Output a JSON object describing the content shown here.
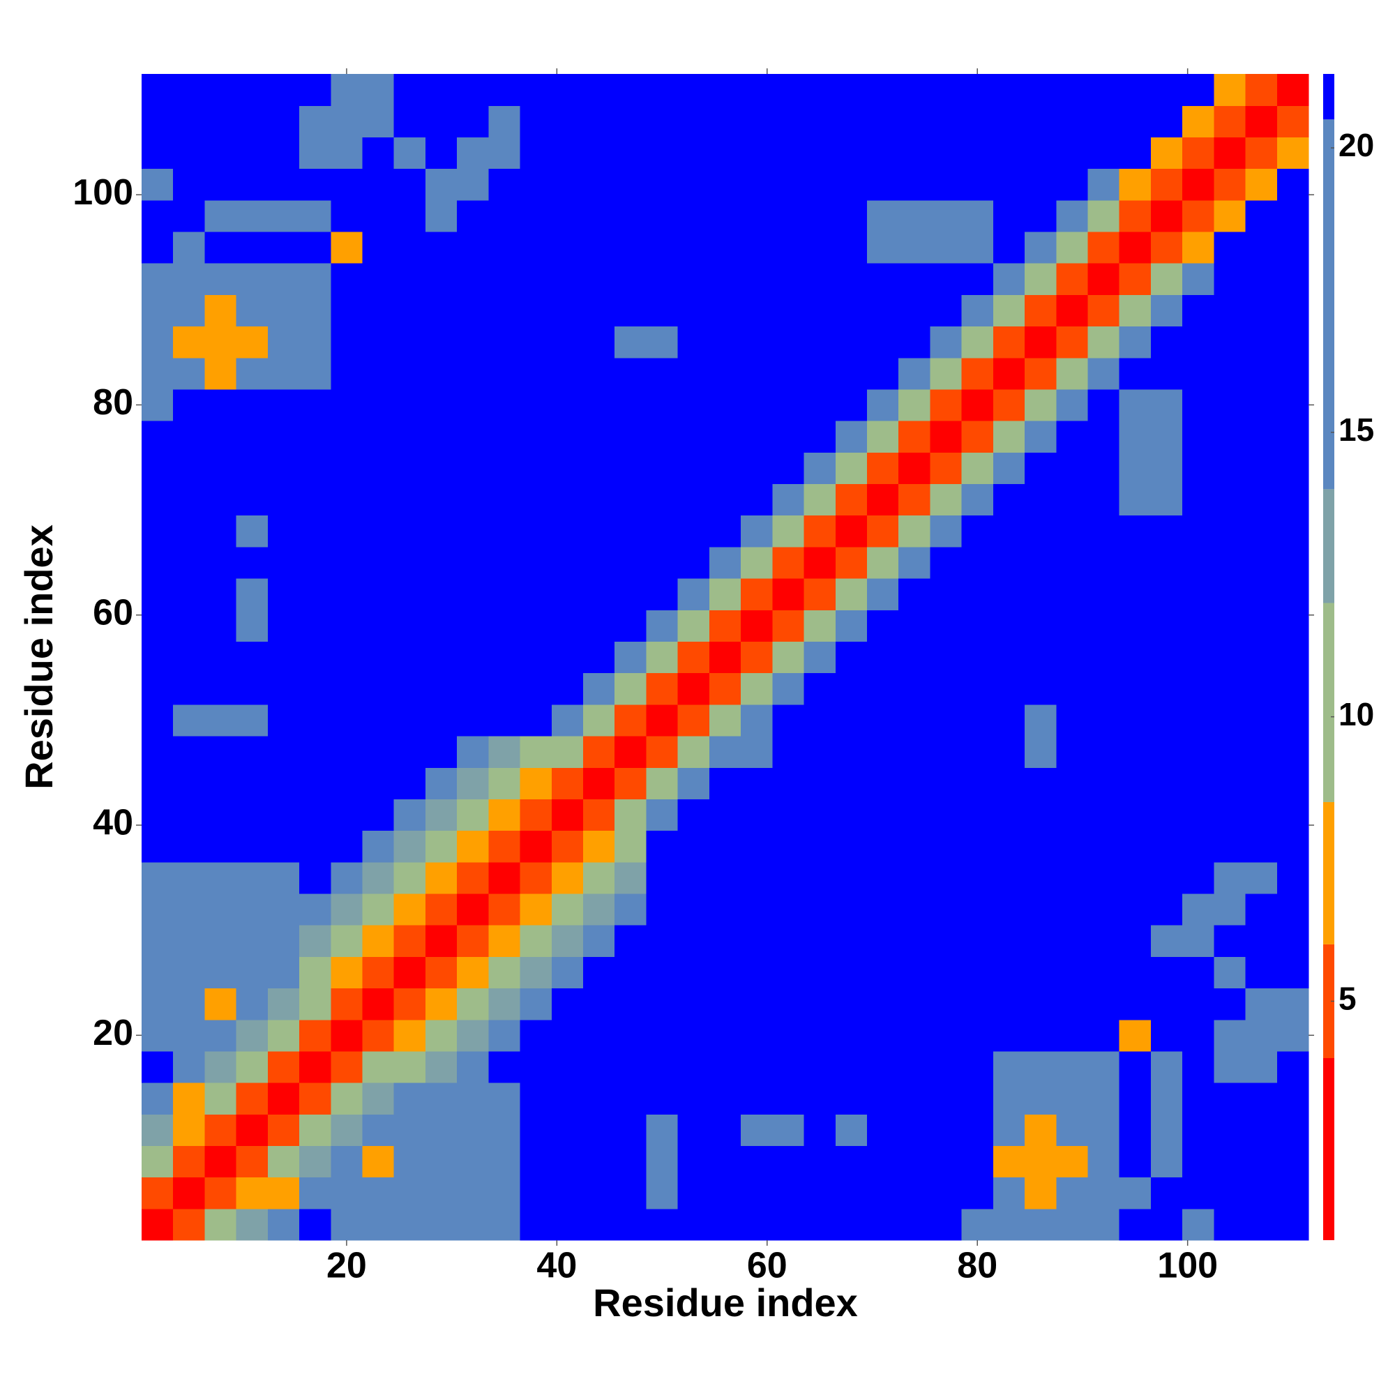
{
  "chart_data": {
    "type": "heatmap",
    "xlabel": "Residue index",
    "ylabel": "Residue index",
    "x": [
      2,
      5,
      8,
      11,
      14,
      17,
      20,
      23,
      26,
      29,
      32,
      35,
      38,
      41,
      44,
      47,
      50,
      53,
      56,
      59,
      62,
      65,
      68,
      71,
      74,
      77,
      80,
      83,
      86,
      89,
      92,
      95,
      98,
      101,
      104,
      107,
      110
    ],
    "y": [
      2,
      5,
      8,
      11,
      14,
      17,
      20,
      23,
      26,
      29,
      32,
      35,
      38,
      41,
      44,
      47,
      50,
      53,
      56,
      59,
      62,
      65,
      68,
      71,
      74,
      77,
      80,
      83,
      86,
      89,
      92,
      95,
      98,
      101,
      104,
      107,
      110
    ],
    "xlim": [
      0.5,
      111.5
    ],
    "ylim": [
      0.5,
      111.5
    ],
    "xticks": [
      20,
      40,
      60,
      80,
      100
    ],
    "yticks": [
      20,
      40,
      60,
      80,
      100
    ],
    "zlim": [
      0.8,
      21.3
    ],
    "zticks": [
      5,
      10,
      15,
      20
    ],
    "levels": [
      0.8,
      4,
      6,
      8.5,
      12,
      14,
      20.5,
      21.3
    ],
    "colors": [
      "#ff0000",
      "#ff4a00",
      "#ffa000",
      "#9ebc8a",
      "#7fa2a8",
      "#5b87c0",
      "#0000ff"
    ],
    "z": [
      [
        3,
        5,
        11,
        13,
        16,
        21,
        16,
        16,
        16,
        16,
        16,
        16,
        21,
        21,
        21,
        21,
        21,
        21,
        21,
        21,
        21,
        21,
        21,
        21,
        21,
        21,
        16,
        16,
        16,
        16,
        16,
        21,
        21,
        16,
        21,
        21,
        21
      ],
      [
        5,
        3,
        5,
        7,
        7,
        16,
        16,
        16,
        16,
        16,
        16,
        16,
        21,
        21,
        21,
        21,
        16,
        21,
        21,
        21,
        21,
        21,
        21,
        21,
        21,
        21,
        21,
        16,
        8,
        16,
        16,
        16,
        21,
        21,
        21,
        21,
        21
      ],
      [
        11,
        5,
        3,
        5,
        11,
        13,
        16,
        7,
        16,
        16,
        16,
        16,
        21,
        21,
        21,
        21,
        16,
        21,
        21,
        21,
        21,
        21,
        21,
        21,
        21,
        21,
        21,
        8,
        7,
        8,
        16,
        21,
        16,
        21,
        21,
        21,
        21
      ],
      [
        13,
        7,
        5,
        3,
        5,
        11,
        13,
        16,
        16,
        16,
        16,
        16,
        21,
        21,
        21,
        21,
        16,
        21,
        21,
        16,
        16,
        21,
        16,
        21,
        21,
        21,
        21,
        16,
        8,
        16,
        16,
        21,
        16,
        21,
        21,
        21,
        21
      ],
      [
        16,
        7,
        11,
        5,
        3,
        5,
        11,
        13,
        16,
        16,
        16,
        16,
        21,
        21,
        21,
        21,
        21,
        21,
        21,
        21,
        21,
        21,
        21,
        21,
        21,
        21,
        21,
        16,
        16,
        16,
        16,
        21,
        16,
        21,
        21,
        21,
        21
      ],
      [
        21,
        16,
        13,
        11,
        5,
        3,
        5,
        11,
        11,
        13,
        16,
        21,
        21,
        21,
        21,
        21,
        21,
        21,
        21,
        21,
        21,
        21,
        21,
        21,
        21,
        21,
        21,
        16,
        16,
        16,
        16,
        21,
        16,
        21,
        16,
        16,
        21
      ],
      [
        16,
        16,
        16,
        13,
        11,
        5,
        3,
        5,
        8,
        11,
        13,
        16,
        21,
        21,
        21,
        21,
        21,
        21,
        21,
        21,
        21,
        21,
        21,
        21,
        21,
        21,
        21,
        21,
        21,
        21,
        21,
        7,
        21,
        21,
        16,
        16,
        16
      ],
      [
        16,
        16,
        7,
        16,
        13,
        11,
        5,
        3,
        5,
        8,
        11,
        13,
        16,
        21,
        21,
        21,
        21,
        21,
        21,
        21,
        21,
        21,
        21,
        21,
        21,
        21,
        21,
        21,
        21,
        21,
        21,
        21,
        21,
        21,
        21,
        16,
        16
      ],
      [
        16,
        16,
        16,
        16,
        16,
        11,
        8,
        5,
        3,
        5,
        8,
        11,
        13,
        16,
        21,
        21,
        21,
        21,
        21,
        21,
        21,
        21,
        21,
        21,
        21,
        21,
        21,
        21,
        21,
        21,
        21,
        21,
        21,
        21,
        16,
        21,
        21
      ],
      [
        16,
        16,
        16,
        16,
        16,
        13,
        11,
        8,
        5,
        3,
        5,
        8,
        11,
        13,
        16,
        21,
        21,
        21,
        21,
        21,
        21,
        21,
        21,
        21,
        21,
        21,
        21,
        21,
        21,
        21,
        21,
        21,
        16,
        16,
        21,
        21,
        21
      ],
      [
        16,
        16,
        16,
        16,
        16,
        16,
        13,
        11,
        8,
        5,
        3,
        5,
        8,
        11,
        13,
        16,
        21,
        21,
        21,
        21,
        21,
        21,
        21,
        21,
        21,
        21,
        21,
        21,
        21,
        21,
        21,
        21,
        21,
        16,
        16,
        21,
        21
      ],
      [
        16,
        16,
        16,
        16,
        16,
        21,
        16,
        13,
        11,
        8,
        5,
        3,
        5,
        8,
        11,
        13,
        21,
        21,
        21,
        21,
        21,
        21,
        21,
        21,
        21,
        21,
        21,
        21,
        21,
        21,
        21,
        21,
        21,
        21,
        16,
        16,
        21
      ],
      [
        21,
        21,
        21,
        21,
        21,
        21,
        21,
        16,
        13,
        11,
        8,
        5,
        3,
        5,
        8,
        11,
        21,
        21,
        21,
        21,
        21,
        21,
        21,
        21,
        21,
        21,
        21,
        21,
        21,
        21,
        21,
        21,
        21,
        21,
        21,
        21,
        21
      ],
      [
        21,
        21,
        21,
        21,
        21,
        21,
        21,
        21,
        16,
        13,
        11,
        8,
        5,
        3,
        5,
        11,
        16,
        21,
        21,
        21,
        21,
        21,
        21,
        21,
        21,
        21,
        21,
        21,
        21,
        21,
        21,
        21,
        21,
        21,
        21,
        21,
        21
      ],
      [
        21,
        21,
        21,
        21,
        21,
        21,
        21,
        21,
        21,
        16,
        13,
        11,
        8,
        5,
        3,
        5,
        11,
        16,
        21,
        21,
        21,
        21,
        21,
        21,
        21,
        21,
        21,
        21,
        21,
        21,
        21,
        21,
        21,
        21,
        21,
        21,
        21
      ],
      [
        21,
        21,
        21,
        21,
        21,
        21,
        21,
        21,
        21,
        21,
        16,
        13,
        11,
        11,
        5,
        3,
        5,
        11,
        16,
        16,
        21,
        21,
        21,
        21,
        21,
        21,
        21,
        21,
        16,
        21,
        21,
        21,
        21,
        21,
        21,
        21,
        21
      ],
      [
        21,
        16,
        16,
        16,
        21,
        21,
        21,
        21,
        21,
        21,
        21,
        21,
        21,
        16,
        11,
        5,
        3,
        5,
        11,
        16,
        21,
        21,
        21,
        21,
        21,
        21,
        21,
        21,
        16,
        21,
        21,
        21,
        21,
        21,
        21,
        21,
        21
      ],
      [
        21,
        21,
        21,
        21,
        21,
        21,
        21,
        21,
        21,
        21,
        21,
        21,
        21,
        21,
        16,
        11,
        5,
        3,
        5,
        11,
        16,
        21,
        21,
        21,
        21,
        21,
        21,
        21,
        21,
        21,
        21,
        21,
        21,
        21,
        21,
        21,
        21
      ],
      [
        21,
        21,
        21,
        21,
        21,
        21,
        21,
        21,
        21,
        21,
        21,
        21,
        21,
        21,
        21,
        16,
        11,
        5,
        3,
        5,
        11,
        16,
        21,
        21,
        21,
        21,
        21,
        21,
        21,
        21,
        21,
        21,
        21,
        21,
        21,
        21,
        21
      ],
      [
        21,
        21,
        21,
        16,
        21,
        21,
        21,
        21,
        21,
        21,
        21,
        21,
        21,
        21,
        21,
        21,
        16,
        11,
        5,
        3,
        5,
        11,
        16,
        21,
        21,
        21,
        21,
        21,
        21,
        21,
        21,
        21,
        21,
        21,
        21,
        21,
        21
      ],
      [
        21,
        21,
        21,
        16,
        21,
        21,
        21,
        21,
        21,
        21,
        21,
        21,
        21,
        21,
        21,
        21,
        21,
        16,
        11,
        5,
        3,
        5,
        11,
        16,
        21,
        21,
        21,
        21,
        21,
        21,
        21,
        21,
        21,
        21,
        21,
        21,
        21
      ],
      [
        21,
        21,
        21,
        21,
        21,
        21,
        21,
        21,
        21,
        21,
        21,
        21,
        21,
        21,
        21,
        21,
        21,
        21,
        16,
        11,
        5,
        3,
        5,
        11,
        16,
        21,
        21,
        21,
        21,
        21,
        21,
        21,
        21,
        21,
        21,
        21,
        21
      ],
      [
        21,
        21,
        21,
        16,
        21,
        21,
        21,
        21,
        21,
        21,
        21,
        21,
        21,
        21,
        21,
        21,
        21,
        21,
        21,
        16,
        11,
        5,
        3,
        5,
        11,
        16,
        21,
        21,
        21,
        21,
        21,
        21,
        21,
        21,
        21,
        21,
        21
      ],
      [
        21,
        21,
        21,
        21,
        21,
        21,
        21,
        21,
        21,
        21,
        21,
        21,
        21,
        21,
        21,
        21,
        21,
        21,
        21,
        21,
        16,
        11,
        5,
        3,
        5,
        11,
        16,
        21,
        21,
        21,
        21,
        16,
        16,
        21,
        21,
        21,
        21
      ],
      [
        21,
        21,
        21,
        21,
        21,
        21,
        21,
        21,
        21,
        21,
        21,
        21,
        21,
        21,
        21,
        21,
        21,
        21,
        21,
        21,
        21,
        16,
        11,
        5,
        3,
        5,
        11,
        16,
        21,
        21,
        21,
        16,
        16,
        21,
        21,
        21,
        21
      ],
      [
        21,
        21,
        21,
        21,
        21,
        21,
        21,
        21,
        21,
        21,
        21,
        21,
        21,
        21,
        21,
        21,
        21,
        21,
        21,
        21,
        21,
        21,
        16,
        11,
        5,
        3,
        5,
        11,
        16,
        21,
        21,
        16,
        16,
        21,
        21,
        21,
        21
      ],
      [
        16,
        21,
        21,
        21,
        21,
        21,
        21,
        21,
        21,
        21,
        21,
        21,
        21,
        21,
        21,
        21,
        21,
        21,
        21,
        21,
        21,
        21,
        21,
        16,
        11,
        5,
        3,
        5,
        11,
        16,
        21,
        16,
        16,
        21,
        21,
        21,
        21
      ],
      [
        16,
        16,
        8,
        16,
        16,
        16,
        21,
        21,
        21,
        21,
        21,
        21,
        21,
        21,
        21,
        21,
        21,
        21,
        21,
        21,
        21,
        21,
        21,
        21,
        16,
        11,
        5,
        3,
        5,
        11,
        16,
        21,
        21,
        21,
        21,
        21,
        21
      ],
      [
        16,
        8,
        7,
        8,
        16,
        16,
        21,
        21,
        21,
        21,
        21,
        21,
        21,
        21,
        21,
        16,
        16,
        21,
        21,
        21,
        21,
        21,
        21,
        21,
        21,
        16,
        11,
        5,
        3,
        5,
        11,
        16,
        21,
        21,
        21,
        21,
        21
      ],
      [
        16,
        16,
        8,
        16,
        16,
        16,
        21,
        21,
        21,
        21,
        21,
        21,
        21,
        21,
        21,
        21,
        21,
        21,
        21,
        21,
        21,
        21,
        21,
        21,
        21,
        21,
        16,
        11,
        5,
        3,
        5,
        11,
        16,
        21,
        21,
        21,
        21
      ],
      [
        16,
        16,
        16,
        16,
        16,
        16,
        21,
        21,
        21,
        21,
        21,
        21,
        21,
        21,
        21,
        21,
        21,
        21,
        21,
        21,
        21,
        21,
        21,
        21,
        21,
        21,
        21,
        16,
        11,
        5,
        3,
        5,
        11,
        16,
        21,
        21,
        21
      ],
      [
        21,
        16,
        21,
        21,
        21,
        21,
        7,
        21,
        21,
        21,
        21,
        21,
        21,
        21,
        21,
        21,
        21,
        21,
        21,
        21,
        21,
        21,
        21,
        16,
        16,
        16,
        16,
        21,
        16,
        11,
        5,
        3,
        5,
        8,
        21,
        21,
        21
      ],
      [
        21,
        21,
        16,
        16,
        16,
        16,
        21,
        21,
        21,
        16,
        21,
        21,
        21,
        21,
        21,
        21,
        21,
        21,
        21,
        21,
        21,
        21,
        21,
        16,
        16,
        16,
        16,
        21,
        21,
        16,
        11,
        5,
        3,
        5,
        8,
        21,
        21
      ],
      [
        16,
        21,
        21,
        21,
        21,
        21,
        21,
        21,
        21,
        16,
        16,
        21,
        21,
        21,
        21,
        21,
        21,
        21,
        21,
        21,
        21,
        21,
        21,
        21,
        21,
        21,
        21,
        21,
        21,
        21,
        16,
        8,
        5,
        3,
        5,
        8,
        21
      ],
      [
        21,
        21,
        21,
        21,
        21,
        16,
        16,
        21,
        16,
        21,
        16,
        16,
        21,
        21,
        21,
        21,
        21,
        21,
        21,
        21,
        21,
        21,
        21,
        21,
        21,
        21,
        21,
        21,
        21,
        21,
        21,
        21,
        8,
        5,
        3,
        5,
        8
      ],
      [
        21,
        21,
        21,
        21,
        21,
        16,
        16,
        16,
        21,
        21,
        21,
        16,
        21,
        21,
        21,
        21,
        21,
        21,
        21,
        21,
        21,
        21,
        21,
        21,
        21,
        21,
        21,
        21,
        21,
        21,
        21,
        21,
        21,
        8,
        5,
        3,
        5
      ],
      [
        21,
        21,
        21,
        21,
        21,
        21,
        16,
        16,
        21,
        21,
        21,
        21,
        21,
        21,
        21,
        21,
        21,
        21,
        21,
        21,
        21,
        21,
        21,
        21,
        21,
        21,
        21,
        21,
        21,
        21,
        21,
        21,
        21,
        21,
        8,
        5,
        3
      ]
    ]
  }
}
